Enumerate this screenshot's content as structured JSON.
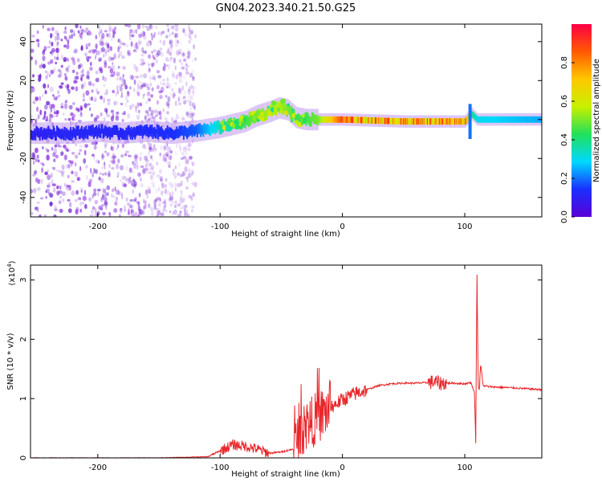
{
  "title": "GN04.2023.340.21.50.G25",
  "colors": {
    "snr_line": "#e8262a",
    "scatter": "#8a2be2",
    "colorbar": [
      "#5a00d6",
      "#1a2fff",
      "#00d8ff",
      "#22e05a",
      "#c8f000",
      "#ffc800",
      "#ff5a00",
      "#ff0044"
    ]
  },
  "chart_data": [
    {
      "type": "heatmap",
      "xlabel": "Height of straight line (km)",
      "ylabel": "Frequency (Hz)",
      "xlim": [
        -255,
        163
      ],
      "ylim": [
        -50,
        49
      ],
      "xticks": [
        -200,
        -100,
        0,
        100
      ],
      "yticks": [
        -40,
        -20,
        0,
        20,
        40
      ],
      "colorbar": {
        "label": "Normalized spectral amplitude",
        "range": [
          0,
          1
        ],
        "ticks": [
          "0.0",
          "0.2",
          "0.4",
          "0.6",
          "0.8"
        ]
      },
      "ridge": {
        "x": [
          -250,
          -220,
          -200,
          -180,
          -160,
          -140,
          -120,
          -100,
          -80,
          -70,
          -60,
          -52,
          -45,
          -38,
          -30,
          -20,
          0,
          50,
          100,
          105,
          110,
          160
        ],
        "y": [
          -7,
          -7,
          -6,
          -7,
          -6,
          -7,
          -6,
          -4,
          -1,
          2,
          4,
          6,
          5,
          1,
          0,
          0,
          0,
          -1,
          -1,
          3,
          0,
          0
        ],
        "amp": [
          0.1,
          0.12,
          0.12,
          0.12,
          0.13,
          0.14,
          0.18,
          0.35,
          0.45,
          0.5,
          0.55,
          0.55,
          0.5,
          0.45,
          0.45,
          0.5,
          0.9,
          0.9,
          0.85,
          0.4,
          0.3,
          0.25
        ]
      },
      "noise_region_x": [
        -255,
        -120
      ]
    },
    {
      "type": "line",
      "xlabel": "Height of straight line (km)",
      "ylabel": "SNR (10 * v/v)",
      "y_multiplier": "(x10",
      "y_multiplier_exp": "4",
      "y_multiplier_close": ")",
      "xlim": [
        -255,
        163
      ],
      "ylim": [
        0,
        3.25
      ],
      "xticks": [
        -200,
        -100,
        0,
        100
      ],
      "yticks": [
        0,
        1,
        2,
        3
      ],
      "x": [
        -255,
        -150,
        -110,
        -100,
        -90,
        -80,
        -70,
        -60,
        -50,
        -40,
        -35,
        -30,
        -25,
        -20,
        -15,
        -10,
        0,
        10,
        20,
        30,
        40,
        50,
        60,
        70,
        75,
        80,
        90,
        100,
        105,
        108,
        109,
        110,
        111,
        112,
        113,
        115,
        120,
        140,
        163
      ],
      "y": [
        0.0,
        0.0,
        0.02,
        0.12,
        0.22,
        0.2,
        0.15,
        0.08,
        0.1,
        0.15,
        0.4,
        0.55,
        0.6,
        0.7,
        0.75,
        0.85,
        0.98,
        1.08,
        1.15,
        1.22,
        1.25,
        1.26,
        1.26,
        1.27,
        1.28,
        1.26,
        1.26,
        1.25,
        1.27,
        1.1,
        0.25,
        3.2,
        1.2,
        1.15,
        1.6,
        1.22,
        1.2,
        1.18,
        1.15
      ]
    }
  ]
}
